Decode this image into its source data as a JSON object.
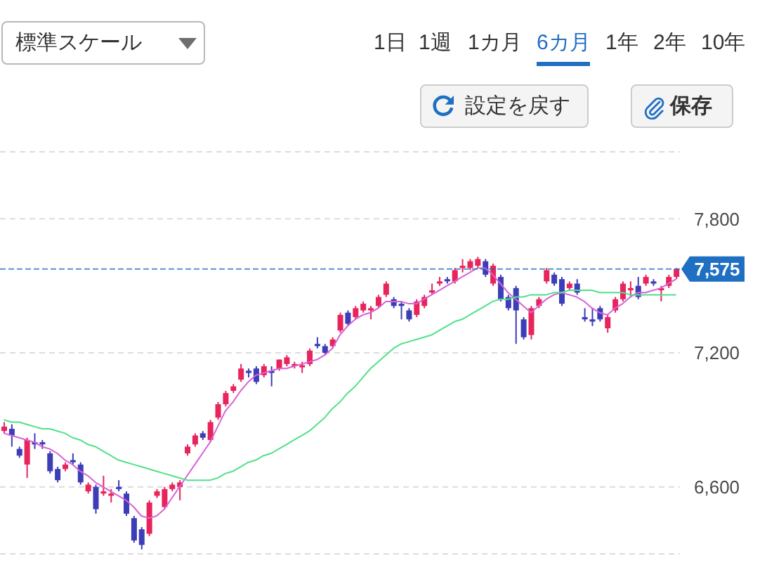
{
  "chart_data": {
    "type": "candlestick",
    "categories": [
      null,
      null,
      null,
      null,
      null,
      null,
      null,
      null,
      null,
      null,
      null,
      null,
      null,
      null,
      null,
      null,
      null,
      null,
      null,
      null,
      null,
      null,
      null,
      null,
      null,
      null,
      null,
      null,
      null,
      null,
      null,
      null,
      null,
      null,
      null,
      null,
      null,
      null,
      null,
      null,
      null,
      null,
      null,
      null,
      null,
      null,
      null,
      null,
      null,
      null,
      null,
      null,
      null,
      null,
      null,
      null,
      null,
      null,
      null,
      null,
      null,
      null,
      null,
      null,
      null,
      null,
      null,
      null,
      null,
      null,
      null,
      null,
      null,
      null,
      null,
      null,
      null,
      null,
      null,
      null,
      null,
      null,
      null,
      null,
      null,
      null,
      null,
      null,
      null
    ],
    "ohlc": [
      [
        6850,
        6890,
        6840,
        6870
      ],
      [
        6860,
        6880,
        6780,
        6830
      ],
      [
        6770,
        6780,
        6730,
        6740
      ],
      [
        6700,
        6820,
        6640,
        6810
      ],
      [
        6800,
        6840,
        6770,
        6790
      ],
      [
        6800,
        6810,
        6770,
        6790
      ],
      [
        6750,
        6760,
        6660,
        6670
      ],
      [
        6680,
        6690,
        6620,
        6630
      ],
      [
        6680,
        6710,
        6670,
        6700
      ],
      [
        6720,
        6750,
        6700,
        6710
      ],
      [
        6700,
        6710,
        6610,
        6620
      ],
      [
        6580,
        6620,
        6570,
        6610
      ],
      [
        6600,
        6610,
        6480,
        6500
      ],
      [
        6570,
        6650,
        6560,
        6580
      ],
      [
        6560,
        6590,
        6530,
        6570
      ],
      [
        6600,
        6630,
        6580,
        6590
      ],
      [
        6570,
        6580,
        6470,
        6480
      ],
      [
        6460,
        6470,
        6350,
        6360
      ],
      [
        6410,
        6420,
        6320,
        6340
      ],
      [
        6390,
        6540,
        6380,
        6530
      ],
      [
        6560,
        6590,
        6550,
        6580
      ],
      [
        6510,
        6600,
        6500,
        6590
      ],
      [
        6590,
        6620,
        6580,
        6610
      ],
      [
        6600,
        6630,
        6540,
        6620
      ],
      [
        6750,
        6790,
        6740,
        6780
      ],
      [
        6790,
        6840,
        6780,
        6830
      ],
      [
        6840,
        6850,
        6810,
        6820
      ],
      [
        6810,
        6900,
        6800,
        6890
      ],
      [
        6910,
        6980,
        6900,
        6970
      ],
      [
        6970,
        7030,
        6960,
        7020
      ],
      [
        7030,
        7060,
        7020,
        7050
      ],
      [
        7080,
        7150,
        7070,
        7130
      ],
      [
        7120,
        7130,
        7090,
        7110
      ],
      [
        7130,
        7140,
        7060,
        7070
      ],
      [
        7100,
        7150,
        7090,
        7140
      ],
      [
        7120,
        7140,
        7050,
        7110
      ],
      [
        7130,
        7170,
        7120,
        7170
      ],
      [
        7150,
        7190,
        7140,
        7180
      ],
      [
        7140,
        7160,
        7130,
        7150
      ],
      [
        7135,
        7160,
        7110,
        7145
      ],
      [
        7150,
        7220,
        7140,
        7210
      ],
      [
        7240,
        7270,
        7220,
        7230
      ],
      [
        7230,
        7240,
        7190,
        7200
      ],
      [
        7230,
        7270,
        7220,
        7260
      ],
      [
        7300,
        7380,
        7290,
        7370
      ],
      [
        7380,
        7390,
        7320,
        7330
      ],
      [
        7360,
        7410,
        7350,
        7400
      ],
      [
        7390,
        7430,
        7380,
        7420
      ],
      [
        7390,
        7410,
        7350,
        7400
      ],
      [
        7410,
        7460,
        7400,
        7450
      ],
      [
        7460,
        7520,
        7450,
        7510
      ],
      [
        7440,
        7450,
        7400,
        7410
      ],
      [
        7420,
        7430,
        7350,
        7410
      ],
      [
        7390,
        7400,
        7340,
        7350
      ],
      [
        7370,
        7440,
        7360,
        7430
      ],
      [
        7410,
        7460,
        7400,
        7450
      ],
      [
        7470,
        7510,
        7460,
        7480
      ],
      [
        7510,
        7540,
        7500,
        7520
      ],
      [
        7530,
        7540,
        7510,
        7520
      ],
      [
        7520,
        7580,
        7510,
        7570
      ],
      [
        7580,
        7620,
        7560,
        7590
      ],
      [
        7580,
        7620,
        7570,
        7610
      ],
      [
        7590,
        7630,
        7580,
        7620
      ],
      [
        7610,
        7620,
        7540,
        7550
      ],
      [
        7510,
        7600,
        7500,
        7590
      ],
      [
        7540,
        7550,
        7430,
        7440
      ],
      [
        7450,
        7460,
        7390,
        7400
      ],
      [
        7490,
        7500,
        7240,
        7390
      ],
      [
        7350,
        7360,
        7260,
        7270
      ],
      [
        7280,
        7410,
        7260,
        7400
      ],
      [
        7410,
        7450,
        7400,
        7440
      ],
      [
        7520,
        7580,
        7510,
        7570
      ],
      [
        7550,
        7560,
        7500,
        7510
      ],
      [
        7530,
        7540,
        7410,
        7420
      ],
      [
        7490,
        7520,
        7480,
        7510
      ],
      [
        7510,
        7530,
        7460,
        7470
      ],
      [
        7360,
        7400,
        7340,
        7350
      ],
      [
        7350,
        7400,
        7320,
        7340
      ],
      [
        7400,
        7410,
        7340,
        7350
      ],
      [
        7310,
        7370,
        7290,
        7360
      ],
      [
        7390,
        7450,
        7380,
        7440
      ],
      [
        7440,
        7520,
        7430,
        7510
      ],
      [
        7480,
        7520,
        7450,
        7490
      ],
      [
        7500,
        7540,
        7440,
        7450
      ],
      [
        7510,
        7550,
        7500,
        7540
      ],
      [
        7520,
        7530,
        7500,
        7510
      ],
      [
        7480,
        7500,
        7430,
        7490
      ],
      [
        7500,
        7550,
        7490,
        7540
      ],
      [
        7540,
        7580,
        7530,
        7575
      ]
    ],
    "colors": [
      "#e8245c",
      "#3d3db8",
      "#3d3db8",
      "#e8245c",
      "#3d3db8",
      "#3d3db8",
      "#3d3db8",
      "#3d3db8",
      "#e8245c",
      "#3d3db8",
      "#3d3db8",
      "#e8245c",
      "#3d3db8",
      "#e8245c",
      "#e8245c",
      "#3d3db8",
      "#3d3db8",
      "#3d3db8",
      "#3d3db8",
      "#e8245c",
      "#e8245c",
      "#e8245c",
      "#e8245c",
      "#e8245c",
      "#e8245c",
      "#e8245c",
      "#3d3db8",
      "#e8245c",
      "#e8245c",
      "#e8245c",
      "#e8245c",
      "#e8245c",
      "#3d3db8",
      "#3d3db8",
      "#e8245c",
      "#3d3db8",
      "#e8245c",
      "#e8245c",
      "#e8245c",
      "#e8245c",
      "#e8245c",
      "#3d3db8",
      "#3d3db8",
      "#e8245c",
      "#e8245c",
      "#3d3db8",
      "#e8245c",
      "#e8245c",
      "#e8245c",
      "#e8245c",
      "#e8245c",
      "#3d3db8",
      "#3d3db8",
      "#3d3db8",
      "#e8245c",
      "#e8245c",
      "#e8245c",
      "#e8245c",
      "#3d3db8",
      "#e8245c",
      "#e8245c",
      "#e8245c",
      "#e8245c",
      "#3d3db8",
      "#e8245c",
      "#3d3db8",
      "#3d3db8",
      "#3d3db8",
      "#3d3db8",
      "#e8245c",
      "#e8245c",
      "#e8245c",
      "#3d3db8",
      "#3d3db8",
      "#e8245c",
      "#3d3db8",
      "#3d3db8",
      "#3d3db8",
      "#3d3db8",
      "#e8245c",
      "#e8245c",
      "#e8245c",
      "#e8245c",
      "#3d3db8",
      "#e8245c",
      "#3d3db8",
      "#e8245c",
      "#e8245c",
      "#e8245c"
    ],
    "series": [
      {
        "type": "line",
        "color": "#d862d8",
        "values": [
          6840,
          6830,
          6820,
          6810,
          6800,
          6780,
          6770,
          6750,
          6720,
          6700,
          6670,
          6650,
          6620,
          6600,
          6580,
          6560,
          6540,
          6510,
          6470,
          6460,
          6470,
          6500,
          6550,
          6600,
          6650,
          6700,
          6750,
          6800,
          6870,
          6940,
          6980,
          7030,
          7070,
          7100,
          7110,
          7120,
          7130,
          7130,
          7140,
          7150,
          7160,
          7170,
          7190,
          7220,
          7280,
          7320,
          7350,
          7370,
          7380,
          7400,
          7430,
          7430,
          7430,
          7420,
          7420,
          7440,
          7460,
          7480,
          7500,
          7520,
          7540,
          7560,
          7580,
          7580,
          7550,
          7510,
          7470,
          7440,
          7410,
          7380,
          7410,
          7440,
          7460,
          7470,
          7460,
          7450,
          7430,
          7400,
          7380,
          7370,
          7400,
          7420,
          7450,
          7470,
          7470,
          7480,
          7490,
          7510,
          7530
        ]
      },
      {
        "type": "line",
        "color": "#52e08a",
        "values": [
          6900,
          6890,
          6890,
          6880,
          6870,
          6860,
          6860,
          6850,
          6840,
          6820,
          6810,
          6790,
          6780,
          6760,
          6740,
          6720,
          6710,
          6700,
          6690,
          6680,
          6670,
          6660,
          6650,
          6640,
          6630,
          6630,
          6630,
          6630,
          6640,
          6660,
          6670,
          6690,
          6710,
          6720,
          6740,
          6750,
          6770,
          6790,
          6810,
          6830,
          6850,
          6880,
          6910,
          6950,
          6980,
          7020,
          7050,
          7090,
          7130,
          7160,
          7190,
          7220,
          7240,
          7250,
          7260,
          7270,
          7280,
          7300,
          7320,
          7340,
          7350,
          7370,
          7390,
          7410,
          7430,
          7440,
          7440,
          7450,
          7450,
          7460,
          7460,
          7460,
          7470,
          7470,
          7480,
          7480,
          7480,
          7480,
          7470,
          7470,
          7470,
          7470,
          7460,
          7460,
          7460,
          7460,
          7460,
          7460,
          7460
        ]
      }
    ],
    "ylim": [
      6300,
      8100
    ],
    "yticks": [
      {
        "value": 6600,
        "label": "6,600"
      },
      {
        "value": 7200,
        "label": "7,200"
      },
      {
        "value": 7800,
        "label": "7,800"
      }
    ],
    "grid": "y",
    "tick_labels": "y",
    "ref_lines": [
      {
        "axis": "y",
        "value": 7575,
        "label": "7,575",
        "color": "#1f6fc2",
        "line_style": "dashed"
      }
    ],
    "annotations": [
      "標準スケール",
      "1日",
      "1週",
      "1カ月",
      "6カ月",
      "1年",
      "2年",
      "10年",
      "設定を戻す",
      "保存"
    ]
  }
}
